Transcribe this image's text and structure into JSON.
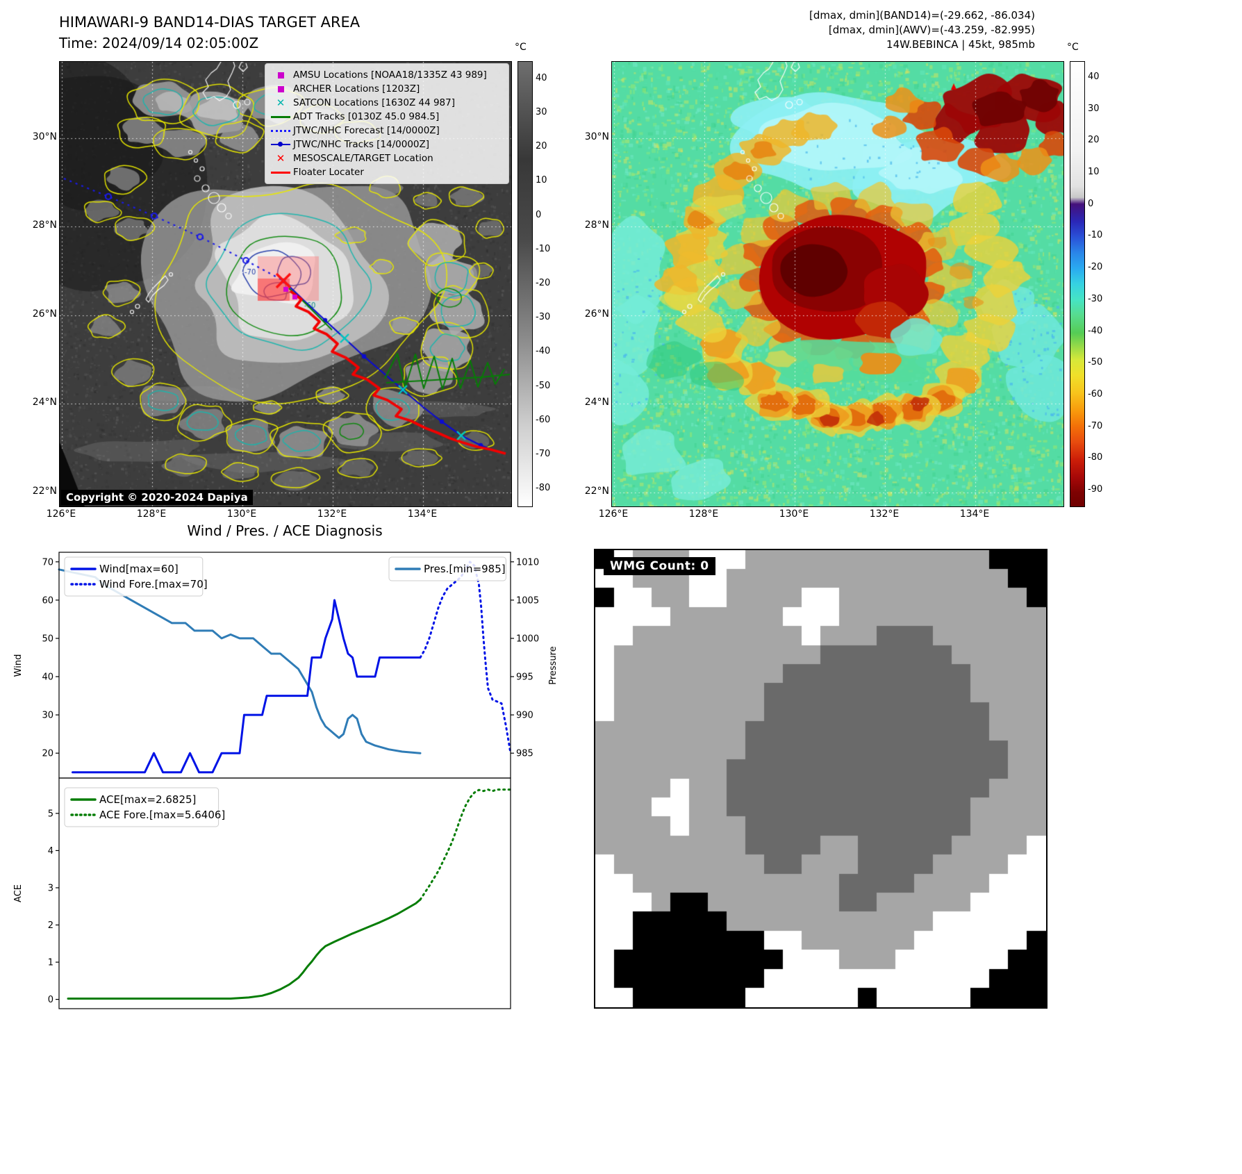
{
  "band14": {
    "title": "HIMAWARI-9 BAND14-DIAS TARGET AREA",
    "time_label": "Time: 2024/09/14 02:05:00Z",
    "copyright": "Copyright © 2020-2024 Dapiya",
    "xticks": [
      "126°E",
      "128°E",
      "130°E",
      "132°E",
      "134°E"
    ],
    "yticks": [
      "30°N",
      "28°N",
      "26°N",
      "24°N",
      "22°N"
    ],
    "colorbar_unit": "°C",
    "colorbar_ticks": [
      40,
      30,
      20,
      10,
      0,
      -10,
      -20,
      -30,
      -40,
      -50,
      -60,
      -70,
      -80
    ],
    "contour_labels": [
      "-70",
      "-60"
    ],
    "legend": [
      {
        "label": "AMSU Locations [NOAA18/1335Z 43 989]",
        "marker": "square",
        "color": "#cc00cc"
      },
      {
        "label": "ARCHER Locations [1203Z]",
        "marker": "square",
        "color": "#cc00cc"
      },
      {
        "label": "SATCON Locations [1630Z 44 987]",
        "marker": "x",
        "color": "#00b5ad"
      },
      {
        "label": "ADT Tracks [0130Z 45.0 984.5]",
        "marker": "line",
        "color": "#067d06"
      },
      {
        "label": "JTWC/NHC Forecast [14/0000Z]",
        "marker": "dotted",
        "color": "#1a1aff"
      },
      {
        "label": "JTWC/NHC Tracks [14/0000Z]",
        "marker": "linedot",
        "color": "#0000cc"
      },
      {
        "label": "MESOSCALE/TARGET Location",
        "marker": "x",
        "color": "#ff0000"
      },
      {
        "label": "Floater Locater",
        "marker": "line",
        "color": "#ff0000"
      }
    ]
  },
  "awv": {
    "annotations": [
      "[dmax, dmin](BAND14)=(-29.662, -86.034)",
      "[dmax, dmin](AWV)=(-43.259, -82.995)",
      "14W.BEBINCA | 45kt, 985mb"
    ],
    "xticks": [
      "126°E",
      "128°E",
      "130°E",
      "132°E",
      "134°E"
    ],
    "yticks": [
      "30°N",
      "28°N",
      "26°N",
      "24°N",
      "22°N"
    ],
    "colorbar_unit": "°C",
    "colorbar_ticks": [
      40,
      30,
      20,
      10,
      0,
      -10,
      -20,
      -30,
      -40,
      -50,
      -60,
      -70,
      -80,
      -90
    ]
  },
  "diagnosis": {
    "title": "Wind / Pres. / ACE Diagnosis"
  },
  "wmg": {
    "label": "WMG Count: 0"
  },
  "chart_data": [
    {
      "id": "wind_pressure",
      "type": "line",
      "ylabel_left": "Wind",
      "ylabel_right": "Pressure",
      "yticks_left": [
        20,
        30,
        40,
        50,
        60,
        70
      ],
      "yticks_right": [
        985,
        990,
        995,
        1000,
        1005,
        1010
      ],
      "ylim_left": [
        13.5,
        72.5
      ],
      "xlim": [
        0,
        100
      ],
      "legend_position": "upper left / upper right",
      "series": [
        {
          "name": "Pres.[min=985]",
          "axis": "pressure",
          "style": "solid",
          "color": "#2f7cb6",
          "points": [
            [
              0,
              1009
            ],
            [
              4,
              1008.5
            ],
            [
              8,
              1008
            ],
            [
              10,
              1007
            ],
            [
              13,
              1006
            ],
            [
              16,
              1005
            ],
            [
              19,
              1004
            ],
            [
              22,
              1003
            ],
            [
              25,
              1002
            ],
            [
              28,
              1002
            ],
            [
              30,
              1001
            ],
            [
              34,
              1001
            ],
            [
              36,
              1000
            ],
            [
              38,
              1000.5
            ],
            [
              40,
              1000
            ],
            [
              43,
              1000
            ],
            [
              45,
              999
            ],
            [
              47,
              998
            ],
            [
              49,
              998
            ],
            [
              51,
              997
            ],
            [
              53,
              996
            ],
            [
              54,
              995
            ],
            [
              55,
              994
            ],
            [
              56,
              993
            ],
            [
              57,
              991
            ],
            [
              58,
              989.5
            ],
            [
              59,
              988.5
            ],
            [
              60,
              988
            ],
            [
              61,
              987.5
            ],
            [
              62,
              987
            ],
            [
              63,
              987.5
            ],
            [
              64,
              989.5
            ],
            [
              65,
              990
            ],
            [
              66,
              989.5
            ],
            [
              67,
              987.5
            ],
            [
              68,
              986.5
            ],
            [
              70,
              986
            ],
            [
              73,
              985.5
            ],
            [
              76,
              985.2
            ],
            [
              80,
              985
            ]
          ]
        },
        {
          "name": "Wind[max=60]",
          "axis": "wind",
          "style": "solid",
          "color": "#0013e6",
          "points": [
            [
              3,
              15
            ],
            [
              19,
              15
            ],
            [
              21,
              20
            ],
            [
              23,
              15
            ],
            [
              27,
              15
            ],
            [
              29,
              20
            ],
            [
              31,
              15
            ],
            [
              34,
              15
            ],
            [
              36,
              20
            ],
            [
              40,
              20
            ],
            [
              41,
              30
            ],
            [
              45,
              30
            ],
            [
              46,
              35
            ],
            [
              55,
              35
            ],
            [
              56,
              45
            ],
            [
              58,
              45
            ],
            [
              59,
              50
            ],
            [
              60.5,
              55
            ],
            [
              61,
              60
            ],
            [
              62,
              55
            ],
            [
              63,
              50
            ],
            [
              64,
              46
            ],
            [
              65,
              45
            ],
            [
              66,
              40
            ],
            [
              70,
              40
            ],
            [
              71,
              45
            ],
            [
              80,
              45
            ]
          ]
        },
        {
          "name": "Wind Fore.[max=70]",
          "axis": "wind",
          "style": "dotted",
          "color": "#0013e6",
          "points": [
            [
              80,
              45
            ],
            [
              81,
              47
            ],
            [
              82,
              50
            ],
            [
              83,
              54
            ],
            [
              84,
              58
            ],
            [
              85,
              61
            ],
            [
              86,
              63
            ],
            [
              87,
              64
            ],
            [
              88,
              65
            ],
            [
              89,
              66
            ],
            [
              90,
              68
            ],
            [
              91,
              70
            ],
            [
              92,
              69
            ],
            [
              93,
              64
            ],
            [
              93.5,
              58
            ],
            [
              94,
              50
            ],
            [
              94.5,
              43
            ],
            [
              95,
              37
            ],
            [
              96,
              34
            ],
            [
              98,
              33
            ],
            [
              99,
              27
            ],
            [
              100,
              20
            ]
          ]
        }
      ]
    },
    {
      "id": "ace",
      "type": "line",
      "ylabel": "ACE",
      "yticks": [
        0,
        1,
        2,
        3,
        4,
        5
      ],
      "ylim": [
        -0.25,
        5.95
      ],
      "xlim": [
        0,
        100
      ],
      "series": [
        {
          "name": "ACE[max=2.6825]",
          "style": "solid",
          "color": "#067d06",
          "points": [
            [
              2,
              0.02
            ],
            [
              38,
              0.02
            ],
            [
              42,
              0.05
            ],
            [
              45,
              0.1
            ],
            [
              47,
              0.17
            ],
            [
              49,
              0.27
            ],
            [
              51,
              0.4
            ],
            [
              53,
              0.58
            ],
            [
              54,
              0.72
            ],
            [
              55,
              0.88
            ],
            [
              56,
              1.02
            ],
            [
              57,
              1.18
            ],
            [
              58,
              1.32
            ],
            [
              59,
              1.43
            ],
            [
              61,
              1.55
            ],
            [
              63,
              1.66
            ],
            [
              65,
              1.77
            ],
            [
              67,
              1.87
            ],
            [
              69,
              1.97
            ],
            [
              71,
              2.07
            ],
            [
              73,
              2.18
            ],
            [
              75,
              2.3
            ],
            [
              77,
              2.44
            ],
            [
              79,
              2.58
            ],
            [
              80,
              2.6825
            ]
          ]
        },
        {
          "name": "ACE Fore.[max=5.6406]",
          "style": "dotted",
          "color": "#067d06",
          "points": [
            [
              80,
              2.6825
            ],
            [
              82,
              3.05
            ],
            [
              84,
              3.45
            ],
            [
              85,
              3.7
            ],
            [
              86,
              3.95
            ],
            [
              87,
              4.22
            ],
            [
              88,
              4.55
            ],
            [
              89,
              4.9
            ],
            [
              90,
              5.2
            ],
            [
              91,
              5.42
            ],
            [
              92,
              5.56
            ],
            [
              93,
              5.63
            ],
            [
              94,
              5.6
            ],
            [
              95,
              5.64
            ],
            [
              96,
              5.6
            ],
            [
              97,
              5.6406
            ],
            [
              100,
              5.6406
            ]
          ]
        }
      ]
    },
    {
      "id": "wmg_grid",
      "type": "heatmap",
      "palette": {
        "W": "#ffffff",
        "L": "#a6a6a6",
        "D": "#6a6a6a",
        "B": "#000000"
      },
      "cells": [
        "BWLLLWWWLLLLLLLLLLLLLBBB",
        "WWLLLWWLLLLLLLLLLLLLLLBB",
        "BWWLLWWLLLLWWLLLLLLLLLLB",
        "WWWWLLLLLLWWWLLLLLLLLLLL",
        "WWLLLLLLLLLWLLLDDDLLLLLL",
        "WLLLLLLLLLLLDDDDDDDLLLLL",
        "WLLLLLLLLLDDDDDDDDDDLLLL",
        "WLLLLLLLLDDDDDDDDDDDLLLL",
        "WLLLLLLLLDDDDDDDDDDDDLLL",
        "LLLLLLLLDDDDDDDDDDDDDLLL",
        "LLLLLLLLDDDDDDDDDDDDDDLL",
        "LLLLLLLDDDDDDDDDDDDDDDLL",
        "LLLLWLLDDDDDDDDDDDDDDLLL",
        "LLLWWLLDDDDDDDDDDDDDLLLL",
        "LLLLWLLLDDDDDDDDDDDDLLLL",
        "LLLLLLLLDDDDLLDDDDDLLLLW",
        "WLLLLLLLLDDLLLDDDDLLLLWW",
        "WWLLLLLLLLLLLDDDDLLLLWWW",
        "WWWLBBLLLLLLLDDLLLLLWWWW",
        "WWBBBBBLLLLLLLLLLLWWWWWW",
        "WWBBBBBBBWWLLLLLLWWWWWWB",
        "WBBBBBBBBBWWWLLLWWWWWWBB",
        "WBBBBBBBBWWWWWWWWWWWWBBB",
        "WWBBBBBBWWWWWWBWWWWWBBBB"
      ]
    }
  ]
}
